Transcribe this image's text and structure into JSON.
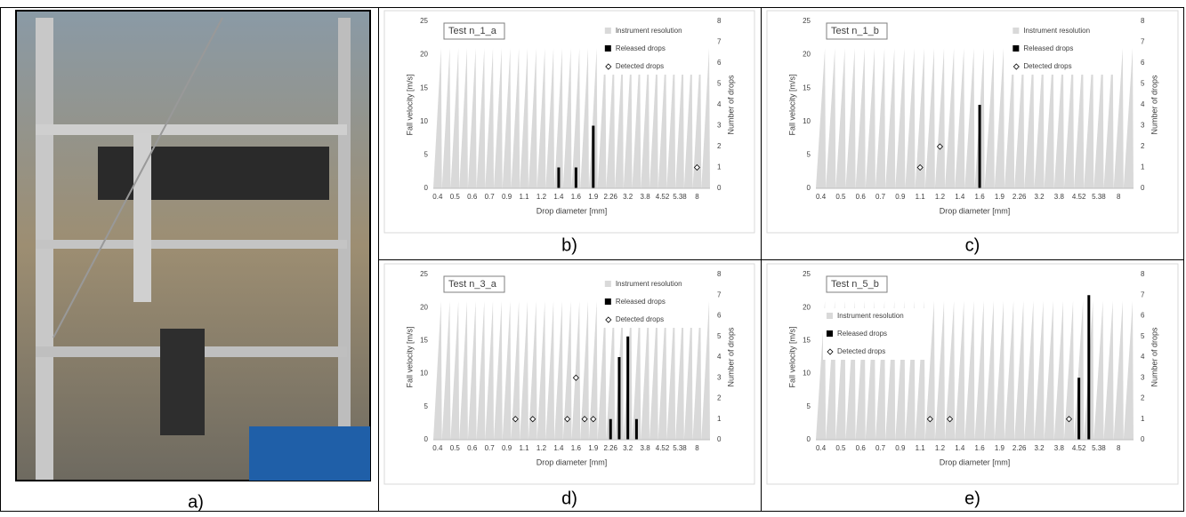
{
  "photo": {
    "caption": "a)"
  },
  "chart_data": [
    {
      "type": "bar",
      "title": "Test n_1_a",
      "caption": "b)",
      "xlabel": "Drop diameter [mm]",
      "ylabel": "Fall velocity [m/s]",
      "y2label": "Number of drops",
      "legend": "upper right",
      "categories": [
        "0.4",
        null,
        "0.5",
        null,
        "0.6",
        null,
        "0.7",
        null,
        "0.9",
        null,
        "1.1",
        null,
        "1.2",
        null,
        "1.4",
        null,
        "1.6",
        null,
        "1.9",
        null,
        "2.26",
        null,
        "3.2",
        null,
        "3.8",
        null,
        "4.52",
        null,
        "5.38",
        null,
        "8",
        null
      ],
      "ylim": [
        0,
        25
      ],
      "yticks": [
        0,
        5,
        10,
        15,
        20,
        25
      ],
      "y2lim": [
        0,
        8
      ],
      "y2ticks": [
        0,
        1,
        2,
        3,
        4,
        5,
        6,
        7,
        8
      ],
      "series": [
        {
          "name": "Instrument resolution",
          "color": "#d9d9d9",
          "values": [
            21,
            21,
            21,
            21,
            21,
            21,
            21,
            21,
            21,
            21,
            21,
            21,
            21,
            21,
            21,
            21,
            21,
            21,
            21,
            21,
            21,
            21,
            21,
            21,
            21,
            21,
            21,
            21,
            21,
            21,
            21,
            21
          ]
        },
        {
          "name": "Released drops",
          "color": "#000000",
          "axis": "y2",
          "values": [
            null,
            null,
            null,
            null,
            null,
            null,
            null,
            null,
            null,
            null,
            null,
            null,
            null,
            null,
            1,
            null,
            1,
            null,
            3,
            null,
            null,
            null,
            null,
            null,
            null,
            null,
            null,
            null,
            null,
            null,
            null,
            null
          ]
        },
        {
          "name": "Detected drops",
          "color": "#ffffff",
          "axis": "y2",
          "values": [
            null,
            null,
            null,
            null,
            null,
            null,
            null,
            null,
            null,
            null,
            null,
            null,
            null,
            null,
            null,
            null,
            null,
            null,
            null,
            null,
            null,
            null,
            null,
            null,
            null,
            null,
            null,
            null,
            null,
            null,
            1,
            null
          ]
        }
      ]
    },
    {
      "type": "bar",
      "title": "Test n_1_b",
      "caption": "c)",
      "xlabel": "Drop diameter [mm]",
      "ylabel": "Fall velocity [m/s]",
      "y2label": "Number of drops",
      "legend": "upper right",
      "categories": [
        "0.4",
        null,
        "0.5",
        null,
        "0.6",
        null,
        "0.7",
        null,
        "0.9",
        null,
        "1.1",
        null,
        "1.2",
        null,
        "1.4",
        null,
        "1.6",
        null,
        "1.9",
        null,
        "2.26",
        null,
        "3.2",
        null,
        "3.8",
        null,
        "4.52",
        null,
        "5.38",
        null,
        "8",
        null
      ],
      "ylim": [
        0,
        25
      ],
      "yticks": [
        0,
        5,
        10,
        15,
        20,
        25
      ],
      "y2lim": [
        0,
        8
      ],
      "y2ticks": [
        0,
        1,
        2,
        3,
        4,
        5,
        6,
        7,
        8
      ],
      "series": [
        {
          "name": "Instrument resolution",
          "color": "#d9d9d9",
          "values": [
            21,
            21,
            21,
            21,
            21,
            21,
            21,
            21,
            21,
            21,
            21,
            21,
            21,
            21,
            21,
            21,
            21,
            21,
            21,
            21,
            21,
            21,
            21,
            21,
            21,
            21,
            21,
            21,
            21,
            21,
            21,
            21
          ]
        },
        {
          "name": "Released drops",
          "color": "#000000",
          "axis": "y2",
          "values": [
            null,
            null,
            null,
            null,
            null,
            null,
            null,
            null,
            null,
            null,
            null,
            null,
            null,
            null,
            null,
            null,
            4,
            null,
            null,
            null,
            null,
            null,
            null,
            null,
            null,
            null,
            null,
            null,
            null,
            null,
            null,
            null
          ]
        },
        {
          "name": "Detected drops",
          "color": "#ffffff",
          "axis": "y2",
          "values": [
            null,
            null,
            null,
            null,
            null,
            null,
            null,
            null,
            null,
            null,
            1,
            null,
            2,
            null,
            null,
            null,
            null,
            null,
            null,
            null,
            null,
            null,
            null,
            null,
            null,
            null,
            null,
            null,
            null,
            null,
            null,
            null
          ]
        }
      ]
    },
    {
      "type": "bar",
      "title": "Test n_3_a",
      "caption": "d)",
      "xlabel": "Drop diameter [mm]",
      "ylabel": "Fall velocity [m/s]",
      "y2label": "Number of drops",
      "legend": "upper right",
      "categories": [
        "0.4",
        null,
        "0.5",
        null,
        "0.6",
        null,
        "0.7",
        null,
        "0.9",
        null,
        "1.1",
        null,
        "1.2",
        null,
        "1.4",
        null,
        "1.6",
        null,
        "1.9",
        null,
        "2.26",
        null,
        "3.2",
        null,
        "3.8",
        null,
        "4.52",
        null,
        "5.38",
        null,
        "8",
        null
      ],
      "ylim": [
        0,
        25
      ],
      "yticks": [
        0,
        5,
        10,
        15,
        20,
        25
      ],
      "y2lim": [
        0,
        8
      ],
      "y2ticks": [
        0,
        1,
        2,
        3,
        4,
        5,
        6,
        7,
        8
      ],
      "series": [
        {
          "name": "Instrument resolution",
          "color": "#d9d9d9",
          "values": [
            21,
            21,
            21,
            21,
            21,
            21,
            21,
            21,
            21,
            21,
            21,
            21,
            21,
            21,
            21,
            21,
            21,
            21,
            21,
            21,
            21,
            21,
            21,
            21,
            21,
            21,
            21,
            21,
            21,
            21,
            21,
            21
          ]
        },
        {
          "name": "Released drops",
          "color": "#000000",
          "axis": "y2",
          "values": [
            null,
            null,
            null,
            null,
            null,
            null,
            null,
            null,
            null,
            null,
            null,
            null,
            null,
            null,
            null,
            null,
            null,
            null,
            null,
            null,
            1,
            4,
            5,
            1,
            null,
            null,
            null,
            null,
            null,
            null,
            null,
            null
          ]
        },
        {
          "name": "Detected drops",
          "color": "#ffffff",
          "axis": "y2",
          "values": [
            null,
            null,
            null,
            null,
            null,
            null,
            null,
            null,
            null,
            1,
            null,
            1,
            null,
            null,
            null,
            1,
            3,
            1,
            1,
            null,
            null,
            null,
            null,
            null,
            null,
            null,
            null,
            null,
            null,
            null,
            null,
            null
          ]
        }
      ]
    },
    {
      "type": "bar",
      "title": "Test n_5_b",
      "caption": "e)",
      "xlabel": "Drop diameter [mm]",
      "ylabel": "Fall velocity [m/s]",
      "y2label": "Number of drops",
      "legend": "upper left",
      "categories": [
        "0.4",
        null,
        "0.5",
        null,
        "0.6",
        null,
        "0.7",
        null,
        "0.9",
        null,
        "1.1",
        null,
        "1.2",
        null,
        "1.4",
        null,
        "1.6",
        null,
        "1.9",
        null,
        "2.26",
        null,
        "3.2",
        null,
        "3.8",
        null,
        "4.52",
        null,
        "5.38",
        null,
        "8",
        null
      ],
      "ylim": [
        0,
        25
      ],
      "yticks": [
        0,
        5,
        10,
        15,
        20,
        25
      ],
      "y2lim": [
        0,
        8
      ],
      "y2ticks": [
        0,
        1,
        2,
        3,
        4,
        5,
        6,
        7,
        8
      ],
      "series": [
        {
          "name": "Instrument resolution",
          "color": "#d9d9d9",
          "values": [
            21,
            21,
            21,
            21,
            21,
            21,
            21,
            21,
            21,
            21,
            21,
            21,
            21,
            21,
            21,
            21,
            21,
            21,
            21,
            21,
            21,
            21,
            21,
            21,
            21,
            21,
            21,
            21,
            21,
            21,
            21,
            21
          ]
        },
        {
          "name": "Released drops",
          "color": "#000000",
          "axis": "y2",
          "values": [
            null,
            null,
            null,
            null,
            null,
            null,
            null,
            null,
            null,
            null,
            null,
            null,
            null,
            null,
            null,
            null,
            null,
            null,
            null,
            null,
            null,
            null,
            null,
            null,
            null,
            null,
            3,
            7,
            null,
            null,
            null,
            null
          ]
        },
        {
          "name": "Detected drops",
          "color": "#ffffff",
          "axis": "y2",
          "values": [
            null,
            null,
            null,
            null,
            null,
            null,
            null,
            null,
            null,
            null,
            null,
            1,
            null,
            1,
            null,
            null,
            null,
            null,
            null,
            null,
            null,
            null,
            null,
            null,
            null,
            1,
            null,
            null,
            null,
            null,
            null,
            null
          ]
        }
      ]
    }
  ]
}
